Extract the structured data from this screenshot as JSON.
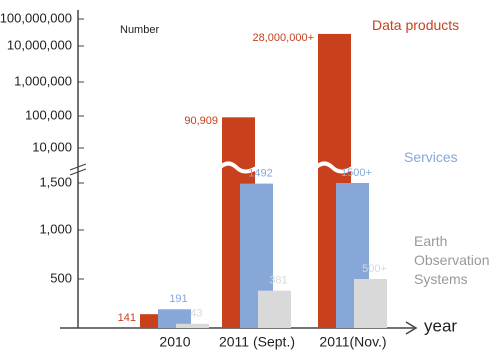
{
  "chart_data": {
    "type": "bar",
    "y_label": "Number",
    "x_label": "year",
    "categories": [
      "2010",
      "2011 (Sept.)",
      "2011(Nov.)"
    ],
    "series": [
      {
        "name": "Data products",
        "color": "#c8401c",
        "values": [
          141,
          90909,
          28000000
        ],
        "value_labels": [
          "141",
          "90,909",
          "28,000,000+"
        ]
      },
      {
        "name": "Services",
        "color": "#86a7d8",
        "values": [
          191,
          1492,
          1500
        ],
        "value_labels": [
          "191",
          "1492",
          "1500+"
        ]
      },
      {
        "name": "Earth Observation Systems",
        "color": "#d9d9d9",
        "values": [
          43,
          381,
          500
        ],
        "value_labels": [
          "43",
          "381",
          "500+"
        ]
      }
    ],
    "ylim": [
      0,
      100000000
    ],
    "yticks": [
      {
        "value": 500,
        "label": "500"
      },
      {
        "value": 1000,
        "label": "1,000"
      },
      {
        "value": 1500,
        "label": "1,500"
      },
      {
        "value": 10000,
        "label": "10,000"
      },
      {
        "value": 100000,
        "label": "100,000"
      },
      {
        "value": 1000000,
        "label": "1,000,000"
      },
      {
        "value": 10000000,
        "label": "10,000,000"
      },
      {
        "value": 100000000,
        "label": "100,000,000"
      }
    ],
    "broken_axis": true
  }
}
